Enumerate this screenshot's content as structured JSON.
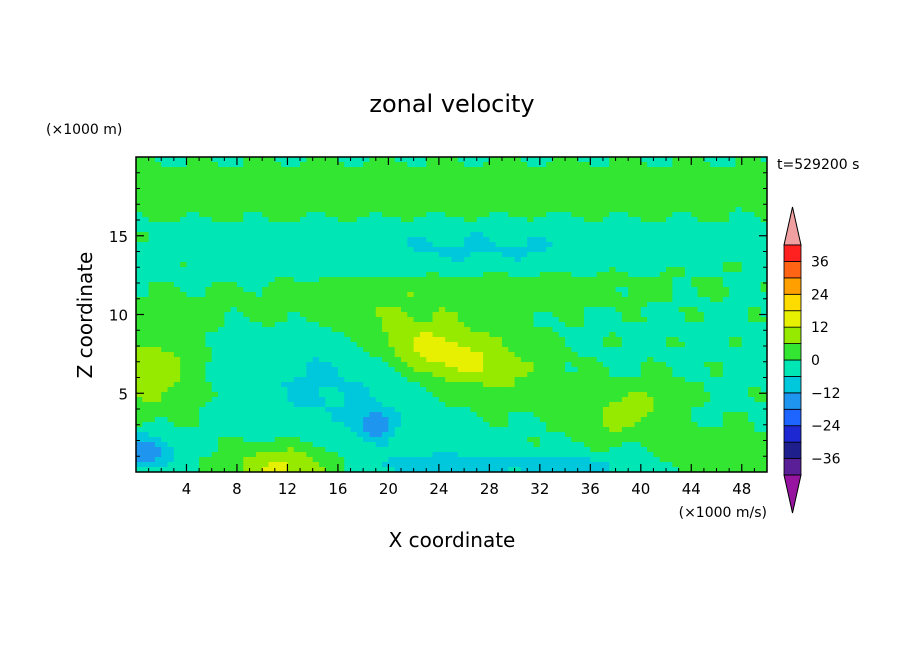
{
  "chart_data": {
    "type": "heatmap",
    "title": "zonal velocity",
    "xlabel": "X coordinate",
    "ylabel": "Z coordinate",
    "x_unit_label": "(×1000 m/s)",
    "y_unit_label": "(×1000 m)",
    "time_label": "t=529200 s",
    "xlim": [
      0,
      50
    ],
    "ylim": [
      0,
      20
    ],
    "x_ticks": [
      4,
      8,
      12,
      16,
      20,
      24,
      28,
      32,
      36,
      40,
      44,
      48
    ],
    "y_ticks": [
      5,
      10,
      15
    ],
    "colorbar": {
      "levels": [
        -42,
        -36,
        -30,
        -24,
        -18,
        -12,
        -6,
        0,
        6,
        12,
        18,
        24,
        30,
        36,
        42
      ],
      "colors": [
        "#5a1e96",
        "#1e1e8c",
        "#1e28d2",
        "#1e64ff",
        "#1e96f0",
        "#00c8dc",
        "#00e6b4",
        "#32e632",
        "#96ea00",
        "#e6f000",
        "#ffdc00",
        "#ffa000",
        "#ff6414",
        "#ff2020",
        "#f0a0a0"
      ],
      "under_color": "#9614a0",
      "over_color": "#f0a0a0",
      "tick_labels": [
        "36",
        "24",
        "12",
        "0",
        "−12",
        "−24",
        "−36"
      ],
      "tick_values": [
        36,
        24,
        12,
        0,
        -12,
        -24,
        -36
      ]
    },
    "features": [
      {
        "name": "jet-core",
        "x": 25,
        "z": 7.5,
        "value": 13,
        "sx": 5,
        "sz": 1.6,
        "tilt": -0.18
      },
      {
        "name": "jet-core-inner",
        "x": 24,
        "z": 7.6,
        "value": 5,
        "sx": 2.5,
        "sz": 0.8,
        "tilt": -0.18
      },
      {
        "name": "upper-band",
        "x": 25,
        "z": 11.5,
        "value": 5,
        "sx": 14,
        "sz": 1.2,
        "tilt": 0.05
      },
      {
        "name": "surface-max",
        "x": 11.5,
        "z": 0.3,
        "value": 14,
        "sx": 3,
        "sz": 1.0,
        "tilt": 0
      },
      {
        "name": "right-max",
        "x": 39,
        "z": 3.8,
        "value": 10,
        "sx": 2.5,
        "sz": 1.1,
        "tilt": 0.2
      },
      {
        "name": "left-max",
        "x": 1.5,
        "z": 6.5,
        "value": 10,
        "sx": 2.5,
        "sz": 2.0,
        "tilt": 0
      },
      {
        "name": "top-band",
        "x": 25,
        "z": 18.5,
        "value": 4,
        "sx": 30,
        "sz": 0.8,
        "tilt": 0
      },
      {
        "name": "mid-band",
        "x": 25,
        "z": 16.8,
        "value": 3,
        "sx": 30,
        "sz": 0.7,
        "tilt": 0
      },
      {
        "name": "cyan-layer",
        "x": 28,
        "z": 14.0,
        "value": -6,
        "sx": 12,
        "sz": 1.2,
        "tilt": 0
      },
      {
        "name": "min-19",
        "x": 19,
        "z": 3.0,
        "value": -14,
        "sx": 1.0,
        "sz": 0.7,
        "tilt": 0
      },
      {
        "name": "min-left-surface",
        "x": 0.8,
        "z": 1.3,
        "value": -16,
        "sx": 1.5,
        "sz": 0.8,
        "tilt": 0
      },
      {
        "name": "min-surface-24",
        "x": 24,
        "z": 0.4,
        "value": -10,
        "sx": 4,
        "sz": 0.6,
        "tilt": 0
      },
      {
        "name": "min-surface-36",
        "x": 34,
        "z": 0.4,
        "value": -8,
        "sx": 3,
        "sz": 0.6,
        "tilt": 0
      },
      {
        "name": "lower-valley",
        "x": 15,
        "z": 5.5,
        "value": -6,
        "sx": 5,
        "sz": 2.5,
        "tilt": 0
      },
      {
        "name": "right-surface-max",
        "x": 46,
        "z": 1.0,
        "value": 6,
        "sx": 2.5,
        "sz": 1.2,
        "tilt": 0
      }
    ]
  }
}
